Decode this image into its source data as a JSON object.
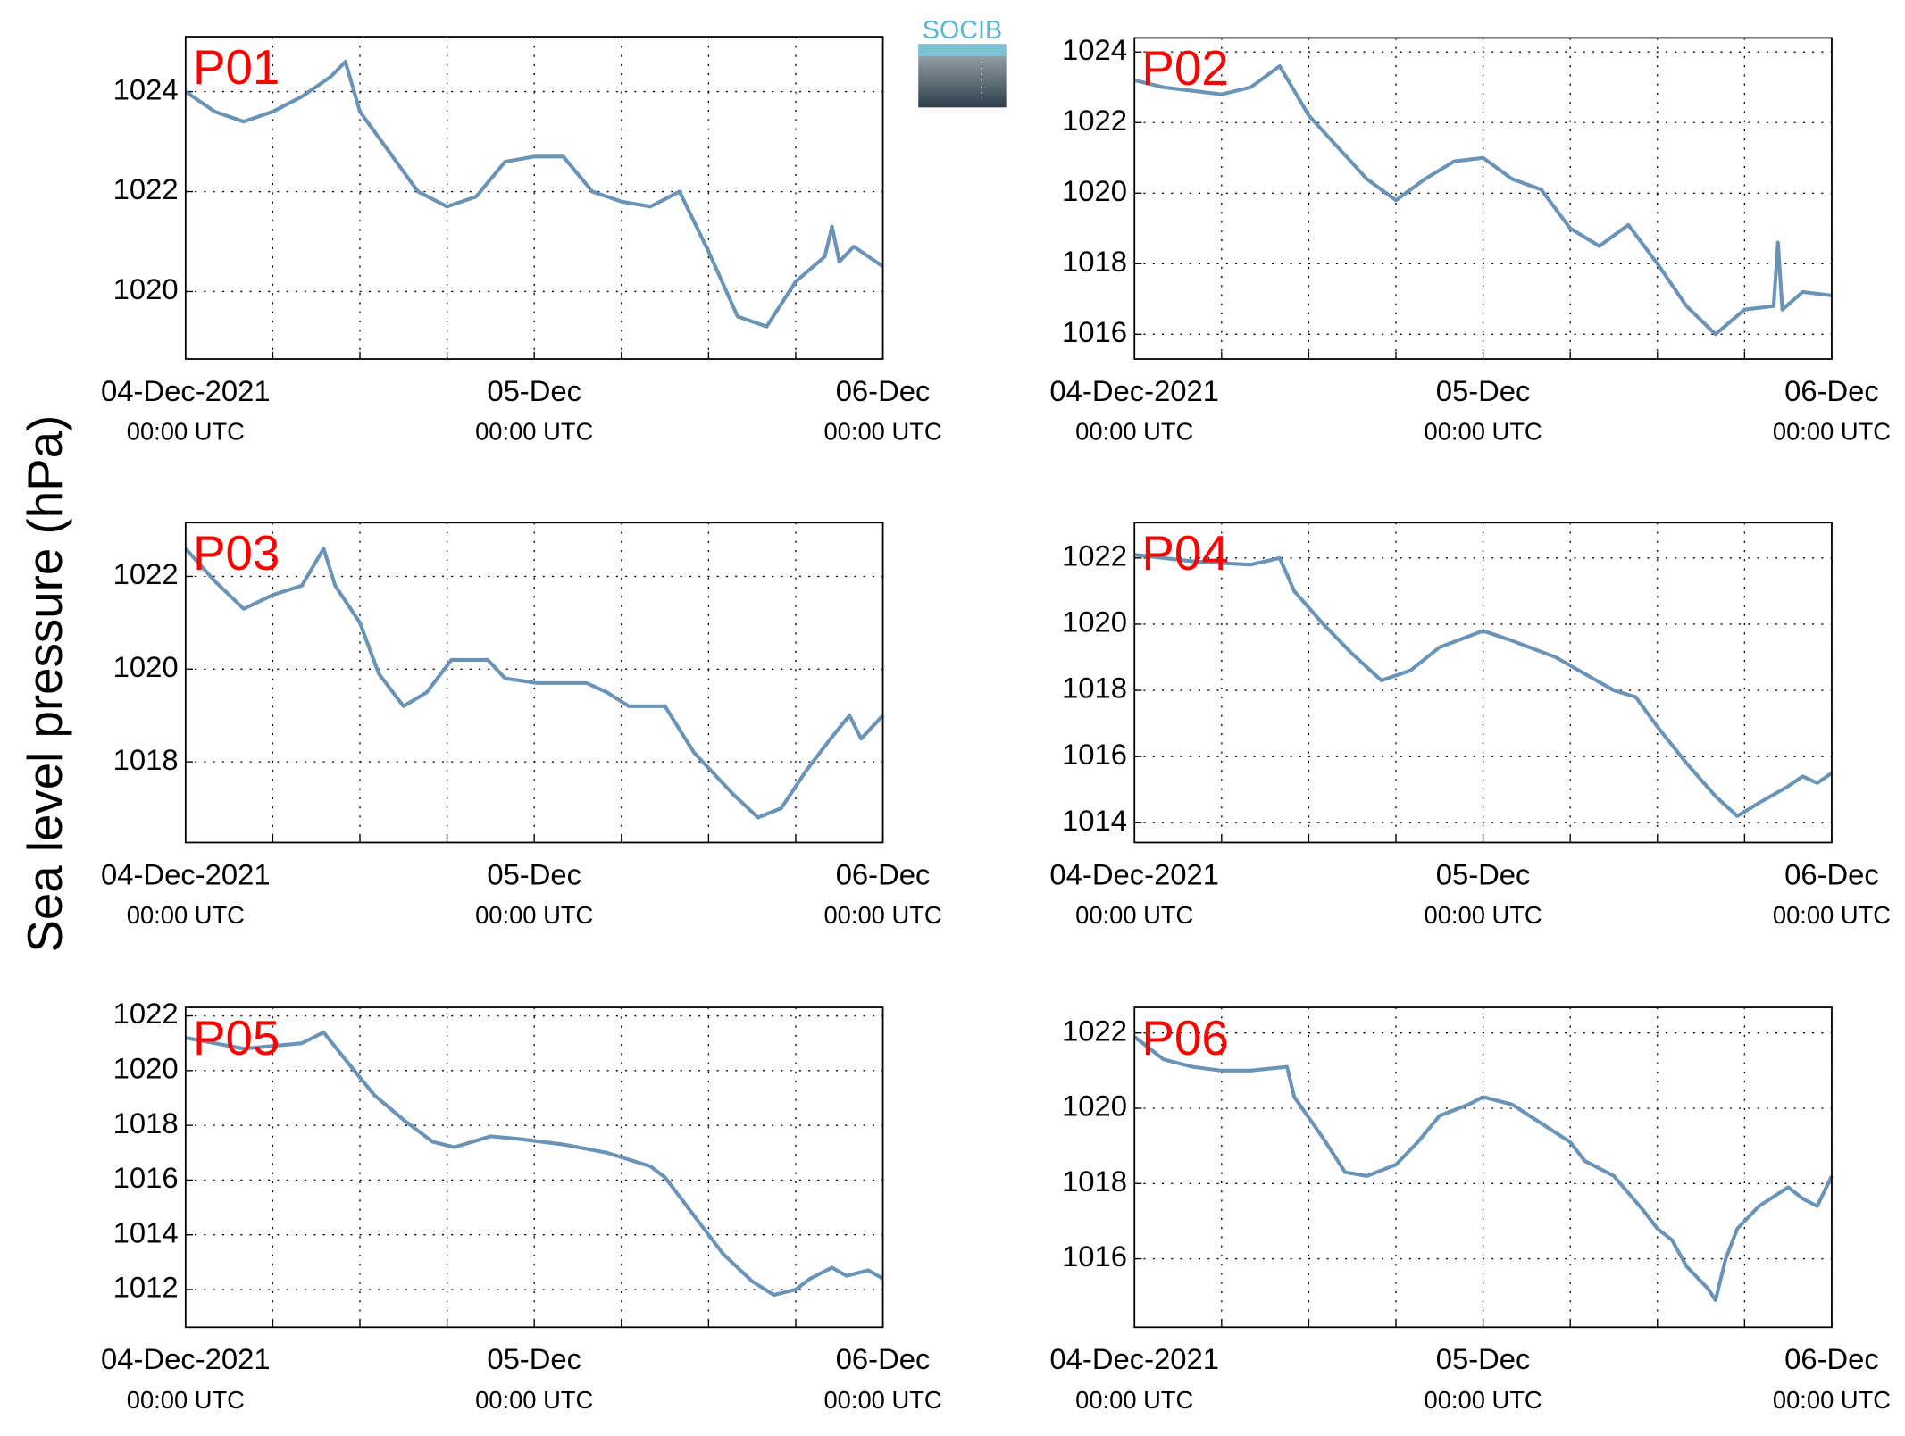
{
  "ylabel": "Sea level pressure (hPa)",
  "logo": "SOCIB",
  "chart_data": [
    {
      "type": "line",
      "title": "P01",
      "color": "#6a93b8",
      "grid": true,
      "x": [
        0,
        2,
        4,
        6,
        8,
        10,
        11,
        12,
        14,
        16,
        18,
        20,
        22,
        24,
        26,
        28,
        30,
        32,
        34,
        36,
        38,
        40,
        42,
        44,
        44.5,
        45,
        46,
        48
      ],
      "values": [
        1024.0,
        1023.6,
        1023.4,
        1023.6,
        1023.9,
        1024.3,
        1024.6,
        1023.6,
        1022.8,
        1022.0,
        1021.7,
        1021.9,
        1022.6,
        1022.7,
        1022.7,
        1022.0,
        1021.8,
        1021.7,
        1022.0,
        1020.8,
        1019.5,
        1019.3,
        1020.2,
        1020.7,
        1021.3,
        1020.6,
        1020.9,
        1020.5
      ],
      "xlim": [
        0,
        48
      ],
      "ylim": [
        1018.65,
        1025.1
      ],
      "yticks": [
        1020,
        1022,
        1024
      ],
      "xticks": [
        {
          "value": 0,
          "label": "04-Dec-2021",
          "sublabel": "00:00 UTC"
        },
        {
          "value": 24,
          "label": "05-Dec",
          "sublabel": "00:00 UTC"
        },
        {
          "value": 48,
          "label": "06-Dec",
          "sublabel": "00:00 UTC"
        }
      ],
      "xminorticks": [
        6,
        12,
        18,
        30,
        36,
        42
      ]
    },
    {
      "type": "line",
      "title": "P02",
      "color": "#6a93b8",
      "grid": true,
      "x": [
        0,
        2,
        4,
        6,
        8,
        10,
        12,
        14,
        16,
        18,
        20,
        22,
        24,
        26,
        28,
        30,
        32,
        34,
        36,
        38,
        40,
        42,
        44,
        44.3,
        44.6,
        46,
        48
      ],
      "values": [
        1023.2,
        1023.0,
        1022.9,
        1022.8,
        1023.0,
        1023.6,
        1022.2,
        1021.3,
        1020.4,
        1019.8,
        1020.4,
        1020.9,
        1021.0,
        1020.4,
        1020.1,
        1019.0,
        1018.5,
        1019.1,
        1018.0,
        1016.8,
        1016.0,
        1016.7,
        1016.8,
        1018.6,
        1016.7,
        1017.2,
        1017.1
      ],
      "xlim": [
        0,
        48
      ],
      "ylim": [
        1015.3,
        1024.4
      ],
      "yticks": [
        1016,
        1018,
        1020,
        1022,
        1024
      ],
      "xticks": [
        {
          "value": 0,
          "label": "04-Dec-2021",
          "sublabel": "00:00 UTC"
        },
        {
          "value": 24,
          "label": "05-Dec",
          "sublabel": "00:00 UTC"
        },
        {
          "value": 48,
          "label": "06-Dec",
          "sublabel": "00:00 UTC"
        }
      ],
      "xminorticks": [
        6,
        12,
        18,
        30,
        36,
        42
      ]
    },
    {
      "type": "line",
      "title": "P03",
      "color": "#6a93b8",
      "grid": true,
      "x": [
        0,
        2,
        4,
        6,
        8,
        9.5,
        10.3,
        12,
        13.3,
        15,
        16.6,
        18.3,
        20.8,
        22,
        24.2,
        27.6,
        29,
        30.5,
        33,
        35,
        37.7,
        39.4,
        41,
        42.7,
        44.4,
        45.7,
        46.5,
        48
      ],
      "values": [
        1022.6,
        1021.9,
        1021.3,
        1021.6,
        1021.8,
        1022.6,
        1021.8,
        1021.0,
        1019.9,
        1019.2,
        1019.5,
        1020.2,
        1020.2,
        1019.8,
        1019.7,
        1019.7,
        1019.5,
        1019.2,
        1019.2,
        1018.2,
        1017.3,
        1016.8,
        1017.0,
        1017.8,
        1018.5,
        1019.0,
        1018.5,
        1019.0
      ],
      "xlim": [
        0,
        48
      ],
      "ylim": [
        1016.26,
        1023.16
      ],
      "yticks": [
        1018,
        1020,
        1022
      ],
      "xticks": [
        {
          "value": 0,
          "label": "04-Dec-2021",
          "sublabel": "00:00 UTC"
        },
        {
          "value": 24,
          "label": "05-Dec",
          "sublabel": "00:00 UTC"
        },
        {
          "value": 48,
          "label": "06-Dec",
          "sublabel": "00:00 UTC"
        }
      ],
      "xminorticks": [
        6,
        12,
        18,
        30,
        36,
        42
      ]
    },
    {
      "type": "line",
      "title": "P04",
      "color": "#6a93b8",
      "grid": true,
      "x": [
        0,
        4,
        8,
        10,
        11,
        13,
        15,
        17,
        19,
        21,
        24,
        26,
        29,
        31,
        33,
        34.5,
        36,
        38,
        40,
        41.5,
        43,
        45,
        46,
        47,
        48
      ],
      "values": [
        1022.1,
        1021.9,
        1021.8,
        1022.0,
        1021.0,
        1020.0,
        1019.1,
        1018.3,
        1018.6,
        1019.3,
        1019.8,
        1019.5,
        1019.0,
        1018.5,
        1018.0,
        1017.8,
        1016.9,
        1015.8,
        1014.8,
        1014.2,
        1014.6,
        1015.1,
        1015.4,
        1015.2,
        1015.5
      ],
      "xlim": [
        0,
        48
      ],
      "ylim": [
        1013.4,
        1023.07
      ],
      "yticks": [
        1014,
        1016,
        1018,
        1020,
        1022
      ],
      "xticks": [
        {
          "value": 0,
          "label": "04-Dec-2021",
          "sublabel": "00:00 UTC"
        },
        {
          "value": 24,
          "label": "05-Dec",
          "sublabel": "00:00 UTC"
        },
        {
          "value": 48,
          "label": "06-Dec",
          "sublabel": "00:00 UTC"
        }
      ],
      "xminorticks": [
        6,
        12,
        18,
        30,
        36,
        42
      ]
    },
    {
      "type": "line",
      "title": "P05",
      "color": "#6a93b8",
      "grid": true,
      "x": [
        0,
        4,
        8,
        9.5,
        11,
        13,
        15,
        17,
        18.5,
        21,
        23,
        26,
        29,
        32,
        33,
        35,
        37,
        39,
        40.5,
        42,
        43,
        44.5,
        45.5,
        47,
        48
      ],
      "values": [
        1021.2,
        1020.8,
        1021.0,
        1021.4,
        1020.4,
        1019.1,
        1018.2,
        1017.4,
        1017.2,
        1017.6,
        1017.5,
        1017.3,
        1017.0,
        1016.5,
        1016.1,
        1014.7,
        1013.3,
        1012.3,
        1011.8,
        1012.0,
        1012.4,
        1012.8,
        1012.5,
        1012.7,
        1012.4
      ],
      "xlim": [
        0,
        48
      ],
      "ylim": [
        1010.62,
        1022.31
      ],
      "yticks": [
        1012,
        1014,
        1016,
        1018,
        1020,
        1022
      ],
      "xticks": [
        {
          "value": 0,
          "label": "04-Dec-2021",
          "sublabel": "00:00 UTC"
        },
        {
          "value": 24,
          "label": "05-Dec",
          "sublabel": "00:00 UTC"
        },
        {
          "value": 48,
          "label": "06-Dec",
          "sublabel": "00:00 UTC"
        }
      ],
      "xminorticks": [
        6,
        12,
        18,
        30,
        36,
        42
      ]
    },
    {
      "type": "line",
      "title": "P06",
      "color": "#6a93b8",
      "grid": true,
      "x": [
        0,
        2,
        4,
        6,
        8,
        10.5,
        11,
        13,
        14.5,
        16,
        18,
        19.5,
        21,
        23,
        24,
        26,
        28,
        30,
        31,
        33,
        35,
        36,
        37,
        38,
        39.5,
        40,
        40.7,
        41.5,
        43,
        45,
        46,
        47,
        48
      ],
      "values": [
        1021.9,
        1021.3,
        1021.1,
        1021.0,
        1021.0,
        1021.1,
        1020.3,
        1019.2,
        1018.3,
        1018.2,
        1018.5,
        1019.1,
        1019.8,
        1020.1,
        1020.3,
        1020.1,
        1019.6,
        1019.1,
        1018.6,
        1018.2,
        1017.3,
        1016.8,
        1016.5,
        1015.8,
        1015.2,
        1014.9,
        1016.0,
        1016.8,
        1017.4,
        1017.9,
        1017.6,
        1017.4,
        1018.2
      ],
      "xlim": [
        0,
        48
      ],
      "ylim": [
        1014.18,
        1022.68
      ],
      "yticks": [
        1016,
        1018,
        1020,
        1022
      ],
      "xticks": [
        {
          "value": 0,
          "label": "04-Dec-2021",
          "sublabel": "00:00 UTC"
        },
        {
          "value": 24,
          "label": "05-Dec",
          "sublabel": "00:00 UTC"
        },
        {
          "value": 48,
          "label": "06-Dec",
          "sublabel": "00:00 UTC"
        }
      ],
      "xminorticks": [
        6,
        12,
        18,
        30,
        36,
        42
      ]
    }
  ]
}
